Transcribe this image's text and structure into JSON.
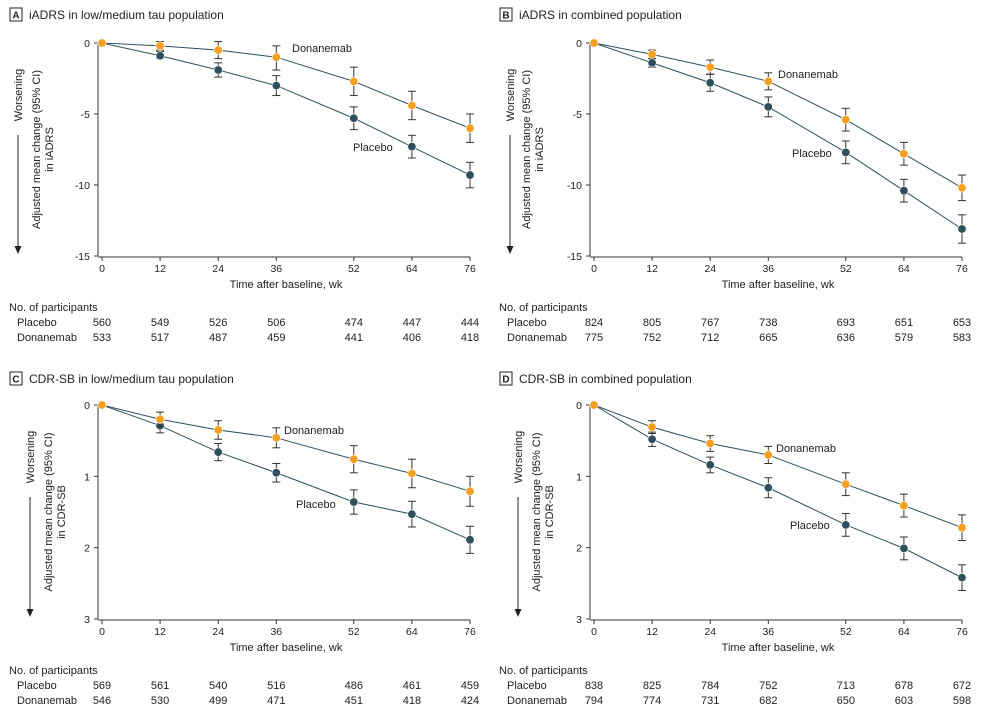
{
  "colors": {
    "placebo": "#2f4f5c",
    "donanemab": "#f5a020",
    "axis": "#333333"
  },
  "chart_data": [
    {
      "panel": "A",
      "title": "iADRS in low/medium tau population",
      "type": "line",
      "x": [
        0,
        12,
        24,
        36,
        52,
        64,
        76
      ],
      "xlabel": "Time after baseline, wk",
      "ylabel": "Adjusted mean change (95% CI) in iADRS",
      "direction_label": "Worsening",
      "ylim": [
        -15,
        0
      ],
      "yticks": [
        0,
        -5,
        -10,
        -15
      ],
      "series": [
        {
          "name": "Donanemab",
          "values": [
            0,
            -0.2,
            -0.5,
            -1.0,
            -2.7,
            -4.4,
            -6.0
          ],
          "ci_low": [
            0,
            -0.5,
            -1.1,
            -1.9,
            -3.7,
            -5.4,
            -7.0
          ],
          "ci_high": [
            0,
            0.1,
            0.1,
            -0.2,
            -1.7,
            -3.4,
            -5.0
          ]
        },
        {
          "name": "Placebo",
          "values": [
            0,
            -0.9,
            -1.9,
            -3.0,
            -5.3,
            -7.3,
            -9.3
          ],
          "ci_low": [
            0,
            -1.1,
            -2.4,
            -3.7,
            -6.1,
            -8.1,
            -10.2
          ],
          "ci_high": [
            0,
            -0.6,
            -1.4,
            -2.3,
            -4.5,
            -6.5,
            -8.4
          ]
        }
      ],
      "participants": {
        "header": "No. of participants",
        "rows": [
          {
            "label": "Placebo",
            "values": [
              "560",
              "549",
              "526",
              "506",
              "474",
              "447",
              "444"
            ]
          },
          {
            "label": "Donanemab",
            "values": [
              "533",
              "517",
              "487",
              "459",
              "441",
              "406",
              "418"
            ]
          }
        ]
      }
    },
    {
      "panel": "B",
      "title": "iADRS in combined population",
      "type": "line",
      "x": [
        0,
        12,
        24,
        36,
        52,
        64,
        76
      ],
      "xlabel": "Time after baseline, wk",
      "ylabel": "Adjusted mean change (95% CI) in iADRS",
      "direction_label": "Worsening",
      "ylim": [
        -15,
        0
      ],
      "yticks": [
        0,
        -5,
        -10,
        -15
      ],
      "series": [
        {
          "name": "Donanemab",
          "values": [
            0,
            -0.8,
            -1.7,
            -2.7,
            -5.4,
            -7.8,
            -10.2
          ],
          "ci_low": [
            0,
            -1.1,
            -2.2,
            -3.3,
            -6.2,
            -8.6,
            -11.1
          ],
          "ci_high": [
            0,
            -0.5,
            -1.2,
            -2.1,
            -4.6,
            -7.0,
            -9.3
          ]
        },
        {
          "name": "Placebo",
          "values": [
            0,
            -1.4,
            -2.8,
            -4.5,
            -7.7,
            -10.4,
            -13.1
          ],
          "ci_low": [
            0,
            -1.7,
            -3.4,
            -5.2,
            -8.5,
            -11.2,
            -14.1
          ],
          "ci_high": [
            0,
            -1.1,
            -2.2,
            -3.8,
            -6.9,
            -9.6,
            -12.1
          ]
        }
      ],
      "participants": {
        "header": "No. of participants",
        "rows": [
          {
            "label": "Placebo",
            "values": [
              "824",
              "805",
              "767",
              "738",
              "693",
              "651",
              "653"
            ]
          },
          {
            "label": "Donanemab",
            "values": [
              "775",
              "752",
              "712",
              "665",
              "636",
              "579",
              "583"
            ]
          }
        ]
      }
    },
    {
      "panel": "C",
      "title": "CDR-SB in low/medium tau population",
      "type": "line",
      "x": [
        0,
        12,
        24,
        36,
        52,
        64,
        76
      ],
      "xlabel": "Time after baseline, wk",
      "ylabel": "Adjusted mean change (95% CI) in CDR-SB",
      "direction_label": "Worsening",
      "ylim": [
        3,
        0
      ],
      "yticks": [
        0,
        1,
        2,
        3
      ],
      "series": [
        {
          "name": "Donanemab",
          "values": [
            0,
            0.2,
            0.35,
            0.46,
            0.76,
            0.96,
            1.21
          ],
          "ci_low": [
            0,
            0.1,
            0.22,
            0.32,
            0.57,
            0.76,
            1.0
          ],
          "ci_high": [
            0,
            0.3,
            0.48,
            0.6,
            0.95,
            1.16,
            1.42
          ]
        },
        {
          "name": "Placebo",
          "values": [
            0,
            0.29,
            0.66,
            0.95,
            1.36,
            1.53,
            1.89
          ],
          "ci_low": [
            0,
            0.19,
            0.54,
            0.82,
            1.19,
            1.35,
            1.7
          ],
          "ci_high": [
            0,
            0.39,
            0.78,
            1.08,
            1.53,
            1.71,
            2.08
          ]
        }
      ],
      "participants": {
        "header": "No. of participants",
        "rows": [
          {
            "label": "Placebo",
            "values": [
              "569",
              "561",
              "540",
              "516",
              "486",
              "461",
              "459"
            ]
          },
          {
            "label": "Donanemab",
            "values": [
              "546",
              "530",
              "499",
              "471",
              "451",
              "418",
              "424"
            ]
          }
        ]
      }
    },
    {
      "panel": "D",
      "title": "CDR-SB in combined population",
      "type": "line",
      "x": [
        0,
        12,
        24,
        36,
        52,
        64,
        76
      ],
      "xlabel": "Time after baseline, wk",
      "ylabel": "Adjusted mean change (95% CI) in CDR-SB",
      "direction_label": "Worsening",
      "ylim": [
        3,
        0
      ],
      "yticks": [
        0,
        1,
        2,
        3
      ],
      "series": [
        {
          "name": "Donanemab",
          "values": [
            0,
            0.31,
            0.54,
            0.7,
            1.11,
            1.41,
            1.72
          ],
          "ci_low": [
            0,
            0.22,
            0.43,
            0.58,
            0.95,
            1.25,
            1.54
          ],
          "ci_high": [
            0,
            0.4,
            0.65,
            0.82,
            1.27,
            1.57,
            1.9
          ]
        },
        {
          "name": "Placebo",
          "values": [
            0,
            0.48,
            0.84,
            1.16,
            1.68,
            2.01,
            2.42
          ],
          "ci_low": [
            0,
            0.38,
            0.73,
            1.02,
            1.52,
            1.85,
            2.24
          ],
          "ci_high": [
            0,
            0.58,
            0.95,
            1.3,
            1.84,
            2.17,
            2.6
          ]
        }
      ],
      "participants": {
        "header": "No. of participants",
        "rows": [
          {
            "label": "Placebo",
            "values": [
              "838",
              "825",
              "784",
              "752",
              "713",
              "678",
              "672"
            ]
          },
          {
            "label": "Donanemab",
            "values": [
              "794",
              "774",
              "731",
              "682",
              "650",
              "603",
              "598"
            ]
          }
        ]
      }
    }
  ]
}
